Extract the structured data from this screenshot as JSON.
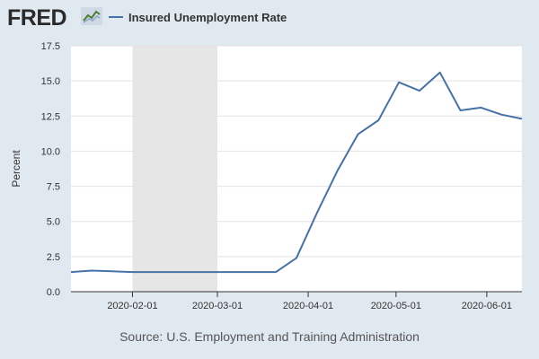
{
  "header": {
    "logo_text": "FRED",
    "legend_label": "Insured Unemployment Rate"
  },
  "colors": {
    "background": "#e1e9f0",
    "plot_background": "#ffffff",
    "series_line": "#4572a7",
    "recession_shade": "#e6e6e6"
  },
  "footer": {
    "source": "Source: U.S. Employment and Training Administration"
  },
  "chart_data": {
    "type": "line",
    "title": "",
    "xlabel": "",
    "ylabel": "Percent",
    "ylim": [
      0,
      17.5
    ],
    "yticks": [
      0.0,
      2.5,
      5.0,
      7.5,
      10.0,
      12.5,
      15.0,
      17.5
    ],
    "ytick_labels": [
      "0.0",
      "2.5",
      "5.0",
      "7.5",
      "10.0",
      "12.5",
      "15.0",
      "17.5"
    ],
    "xlim": [
      "2020-01-11",
      "2020-06-13"
    ],
    "xticks": [
      "2020-02-01",
      "2020-03-01",
      "2020-04-01",
      "2020-05-01",
      "2020-06-01"
    ],
    "grid": "horizontal",
    "legend": "top-left",
    "recession_band": [
      "2020-02-01",
      "2020-03-01"
    ],
    "series": [
      {
        "name": "Insured Unemployment Rate",
        "x": [
          "2020-01-11",
          "2020-01-18",
          "2020-01-25",
          "2020-02-01",
          "2020-02-08",
          "2020-02-15",
          "2020-02-22",
          "2020-02-29",
          "2020-03-07",
          "2020-03-14",
          "2020-03-21",
          "2020-03-28",
          "2020-04-04",
          "2020-04-11",
          "2020-04-18",
          "2020-04-25",
          "2020-05-02",
          "2020-05-09",
          "2020-05-16",
          "2020-05-23",
          "2020-05-30",
          "2020-06-06",
          "2020-06-13"
        ],
        "values": [
          1.4,
          1.5,
          1.45,
          1.4,
          1.4,
          1.4,
          1.4,
          1.4,
          1.4,
          1.4,
          1.4,
          2.4,
          5.6,
          8.6,
          11.2,
          12.2,
          14.9,
          14.3,
          15.6,
          12.9,
          13.1,
          12.6,
          12.3
        ]
      }
    ]
  }
}
